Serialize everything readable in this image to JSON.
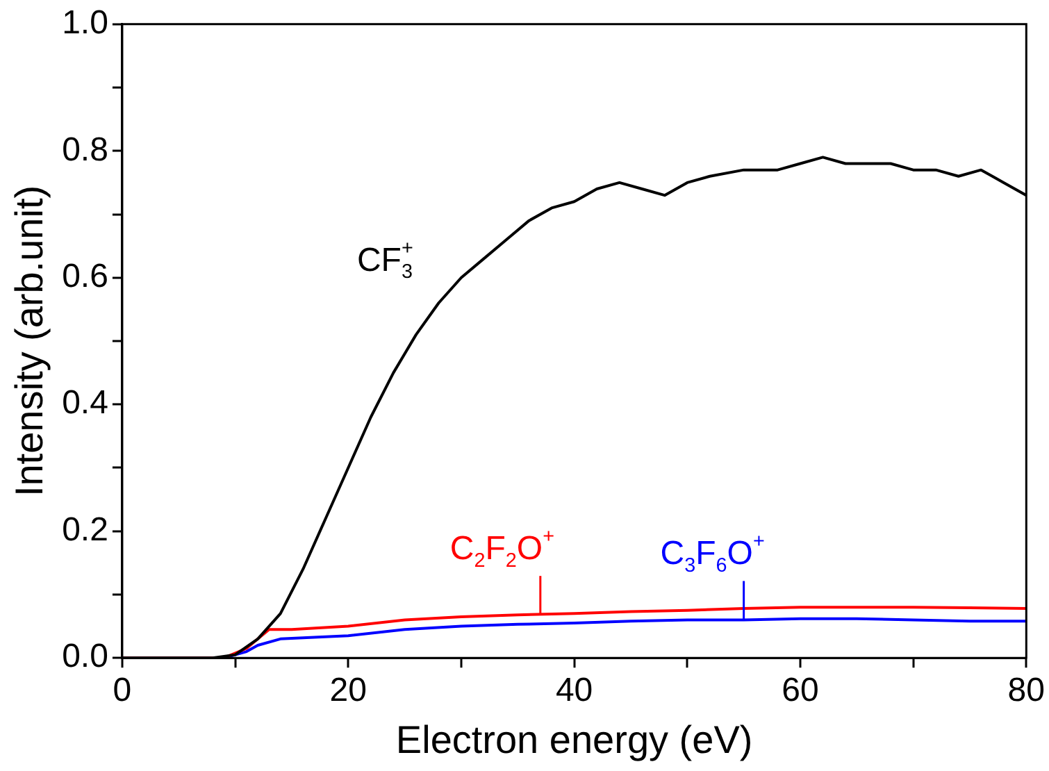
{
  "chart_data": {
    "type": "line",
    "xlabel": "Electron energy (eV)",
    "ylabel": "Intensity (arb.unit)",
    "xlim": [
      0,
      80
    ],
    "xticks": [
      0,
      {
        "value": 10,
        "label": null
      },
      20,
      {
        "value": 30,
        "label": null
      },
      40,
      {
        "value": 50,
        "label": null
      },
      60,
      {
        "value": 70,
        "label": null
      },
      80
    ],
    "ylim": [
      0,
      1.0
    ],
    "yticks": [
      {
        "value": 0,
        "label": "0.0"
      },
      {
        "value": 0.1,
        "label": null
      },
      0.2,
      {
        "value": 0.3,
        "label": null
      },
      0.4,
      {
        "value": 0.5,
        "label": null
      },
      0.6,
      {
        "value": 0.7,
        "label": null
      },
      0.8,
      {
        "value": 0.9,
        "label": null
      },
      {
        "value": 1.0,
        "label": "1.0"
      }
    ],
    "grid": false,
    "legend": false,
    "marker": "none",
    "line_style": "solid",
    "series": [
      {
        "color": "#000000",
        "x": [
          0,
          8,
          10,
          12,
          14,
          16,
          18,
          20,
          22,
          24,
          26,
          28,
          30,
          32,
          34,
          36,
          38,
          40,
          42,
          44,
          46,
          48,
          50,
          52,
          55,
          58,
          60,
          62,
          64,
          66,
          68,
          70,
          72,
          74,
          76,
          78,
          80
        ],
        "values": [
          0,
          0,
          0.005,
          0.03,
          0.07,
          0.14,
          0.22,
          0.3,
          0.38,
          0.45,
          0.51,
          0.56,
          0.6,
          0.63,
          0.66,
          0.69,
          0.71,
          0.72,
          0.74,
          0.75,
          0.74,
          0.73,
          0.75,
          0.76,
          0.77,
          0.77,
          0.78,
          0.79,
          0.78,
          0.78,
          0.78,
          0.77,
          0.77,
          0.76,
          0.77,
          0.75,
          0.73
        ]
      },
      {
        "color": "#ff0000",
        "x": [
          0,
          9,
          11,
          12,
          13,
          15,
          20,
          25,
          30,
          35,
          40,
          45,
          50,
          55,
          60,
          65,
          70,
          75,
          80
        ],
        "values": [
          0,
          0,
          0.015,
          0.03,
          0.045,
          0.045,
          0.05,
          0.06,
          0.065,
          0.068,
          0.07,
          0.073,
          0.075,
          0.078,
          0.08,
          0.08,
          0.08,
          0.079,
          0.078
        ]
      },
      {
        "color": "#0000ff",
        "x": [
          0,
          9,
          11,
          12,
          14,
          20,
          25,
          30,
          35,
          40,
          45,
          50,
          55,
          60,
          65,
          70,
          75,
          80
        ],
        "values": [
          0,
          0,
          0.01,
          0.02,
          0.03,
          0.035,
          0.045,
          0.05,
          0.053,
          0.055,
          0.058,
          0.06,
          0.06,
          0.062,
          0.062,
          0.06,
          0.058,
          0.058
        ]
      }
    ],
    "annotations": [
      {
        "text": "CF$_{3}$$^{+}$",
        "x": 30,
        "y": 0.6
      },
      {
        "text": "C$_{2}$F$_{2}$O$^{+}$",
        "x": 37,
        "y": 0.068
      },
      {
        "text": "C$_{3}$F$_{6}$O$^{+}$",
        "x": 55,
        "y": 0.06
      }
    ]
  }
}
